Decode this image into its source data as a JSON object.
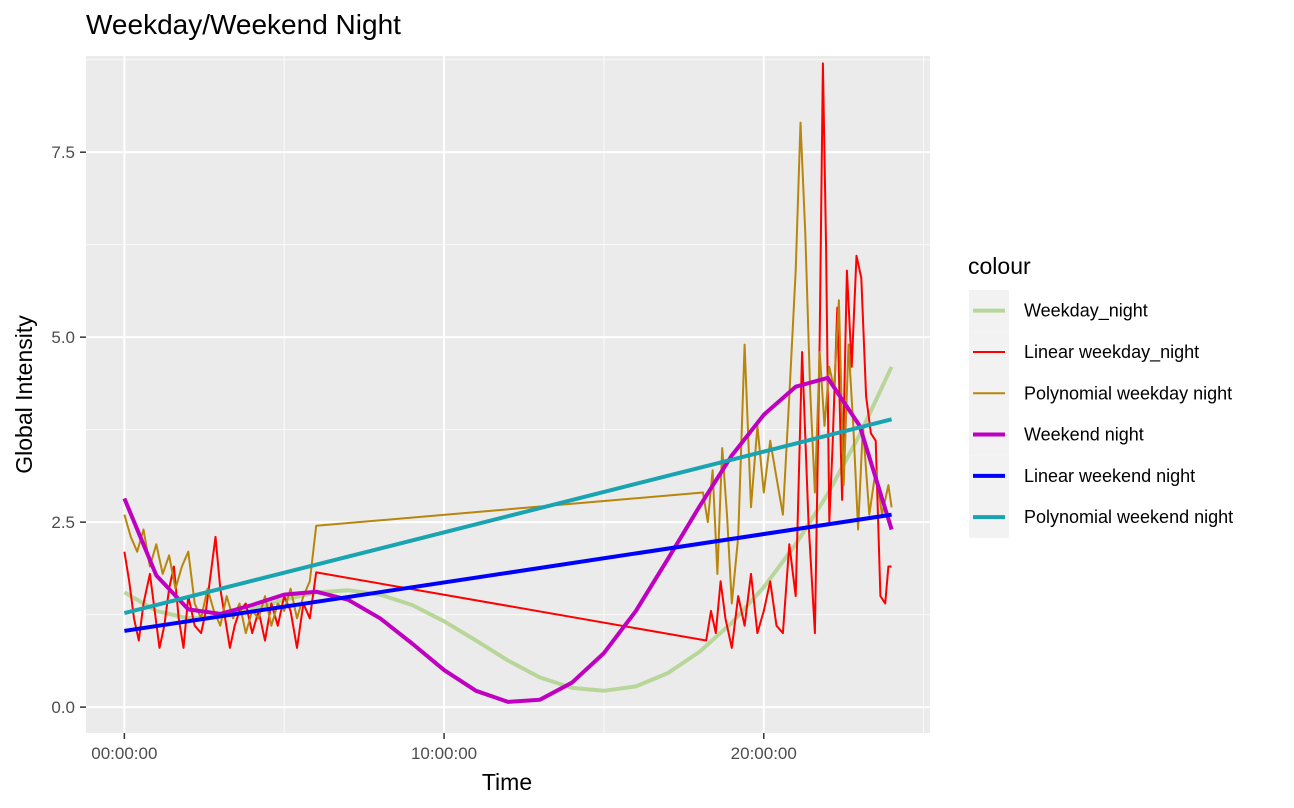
{
  "chart_data": {
    "type": "line",
    "title": "Weekday/Weekend Night",
    "xlabel": "Time",
    "ylabel": "Global Intensity",
    "x_unit": "hours",
    "xlim": [
      -1.2,
      25.2
    ],
    "ylim": [
      -0.35,
      8.8
    ],
    "x_ticks": [
      {
        "value": 0,
        "label": "00:00:00"
      },
      {
        "value": 10,
        "label": "10:00:00"
      },
      {
        "value": 20,
        "label": "20:00:00"
      }
    ],
    "y_ticks": [
      {
        "value": 0,
        "label": "0.0"
      },
      {
        "value": 2.5,
        "label": "2.5"
      },
      {
        "value": 5,
        "label": "5.0"
      },
      {
        "value": 7.5,
        "label": "7.5"
      }
    ],
    "grid": true,
    "legend": {
      "title": "colour",
      "position": "right"
    },
    "series": [
      {
        "name": "Weekday_night",
        "color": "#b8d69a",
        "width": 4,
        "x": [
          0,
          1,
          2,
          3,
          4,
          5,
          6,
          7,
          8,
          9,
          10,
          11,
          12,
          13,
          14,
          15,
          16,
          17,
          18,
          19,
          20,
          21,
          22,
          23,
          24
        ],
        "y": [
          1.55,
          1.3,
          1.2,
          1.22,
          1.32,
          1.45,
          1.55,
          1.58,
          1.52,
          1.38,
          1.16,
          0.9,
          0.63,
          0.4,
          0.26,
          0.22,
          0.28,
          0.46,
          0.75,
          1.14,
          1.62,
          2.2,
          2.88,
          3.68,
          4.6
        ]
      },
      {
        "name": "Linear weekday_night",
        "color": "#ff0000",
        "width": 2,
        "x": [
          0,
          0.15,
          0.3,
          0.45,
          0.6,
          0.8,
          0.95,
          1.1,
          1.25,
          1.4,
          1.55,
          1.7,
          1.85,
          2.0,
          2.2,
          2.4,
          2.55,
          2.7,
          2.85,
          3.0,
          3.15,
          3.3,
          3.45,
          3.6,
          3.8,
          4.0,
          4.2,
          4.4,
          4.6,
          4.8,
          5.0,
          5.2,
          5.4,
          5.6,
          5.8,
          6.0,
          18.2,
          18.35,
          18.5,
          18.65,
          18.8,
          19.0,
          19.2,
          19.4,
          19.6,
          19.8,
          20.0,
          20.2,
          20.4,
          20.6,
          20.8,
          21.0,
          21.2,
          21.4,
          21.6,
          21.75,
          21.85,
          21.95,
          22.05,
          22.15,
          22.3,
          22.45,
          22.6,
          22.75,
          22.9,
          23.05,
          23.2,
          23.35,
          23.5,
          23.65,
          23.8,
          23.9,
          24.0
        ],
        "y": [
          2.1,
          1.7,
          1.2,
          0.9,
          1.4,
          1.8,
          1.3,
          0.8,
          1.1,
          1.6,
          1.9,
          1.2,
          0.8,
          1.5,
          1.1,
          1.0,
          1.3,
          1.8,
          2.3,
          1.6,
          1.2,
          0.8,
          1.1,
          1.3,
          1.4,
          1.0,
          1.3,
          0.9,
          1.4,
          1.1,
          1.5,
          1.3,
          0.8,
          1.4,
          1.2,
          1.82,
          0.9,
          1.3,
          1.0,
          1.7,
          1.2,
          0.8,
          1.5,
          1.1,
          1.8,
          1.0,
          1.3,
          1.7,
          1.1,
          1.0,
          2.2,
          1.5,
          4.8,
          2.5,
          1.0,
          5.0,
          8.7,
          6.2,
          2.5,
          3.5,
          5.4,
          2.8,
          5.9,
          4.6,
          6.1,
          5.8,
          4.2,
          3.7,
          3.6,
          1.5,
          1.4,
          1.9,
          1.9
        ]
      },
      {
        "name": "Polynomial weekday night",
        "color": "#b8860b",
        "width": 2,
        "x": [
          0,
          0.2,
          0.4,
          0.6,
          0.8,
          1.0,
          1.2,
          1.4,
          1.6,
          1.8,
          2.0,
          2.2,
          2.4,
          2.6,
          2.8,
          3.0,
          3.2,
          3.4,
          3.6,
          3.8,
          4.0,
          4.2,
          4.4,
          4.6,
          4.8,
          5.0,
          5.2,
          5.4,
          5.6,
          5.8,
          6.0,
          18.1,
          18.25,
          18.4,
          18.55,
          18.7,
          18.85,
          19.0,
          19.2,
          19.4,
          19.6,
          19.8,
          20.0,
          20.2,
          20.4,
          20.6,
          20.8,
          21.0,
          21.15,
          21.3,
          21.45,
          21.6,
          21.75,
          21.9,
          22.05,
          22.2,
          22.35,
          22.5,
          22.65,
          22.8,
          22.95,
          23.1,
          23.3,
          23.5,
          23.7,
          23.9,
          24.0
        ],
        "y": [
          2.6,
          2.3,
          2.1,
          2.4,
          1.9,
          2.2,
          1.8,
          2.05,
          1.6,
          1.9,
          2.1,
          1.4,
          1.2,
          1.6,
          1.3,
          1.1,
          1.5,
          1.2,
          1.4,
          1.0,
          1.3,
          1.2,
          1.5,
          1.1,
          1.4,
          1.3,
          1.6,
          1.2,
          1.5,
          1.7,
          2.45,
          2.9,
          2.5,
          3.2,
          1.8,
          3.5,
          2.6,
          1.4,
          2.3,
          4.9,
          2.7,
          3.8,
          2.9,
          3.6,
          3.1,
          2.6,
          4.2,
          5.9,
          7.9,
          6.4,
          4.3,
          2.9,
          4.8,
          3.8,
          4.6,
          4.3,
          5.5,
          3.0,
          4.9,
          3.8,
          2.4,
          3.8,
          2.6,
          3.2,
          2.6,
          3.0,
          2.7
        ]
      },
      {
        "name": "Weekend night",
        "color": "#c000c0",
        "width": 4,
        "x": [
          0,
          1,
          2,
          3,
          4,
          5,
          6,
          7,
          8,
          9,
          10,
          11,
          12,
          13,
          14,
          15,
          16,
          17,
          18,
          19,
          20,
          21,
          22,
          23,
          24
        ],
        "y": [
          2.82,
          1.78,
          1.32,
          1.26,
          1.38,
          1.52,
          1.56,
          1.45,
          1.2,
          0.86,
          0.5,
          0.22,
          0.07,
          0.1,
          0.33,
          0.73,
          1.3,
          2.0,
          2.72,
          3.4,
          3.95,
          4.33,
          4.45,
          3.8,
          2.4
        ]
      },
      {
        "name": "Linear weekend night",
        "color": "#0000ff",
        "width": 4,
        "x": [
          0,
          24
        ],
        "y": [
          1.03,
          2.6
        ]
      },
      {
        "name": "Polynomial weekend night",
        "color": "#1aa3b0",
        "width": 4,
        "x": [
          0,
          24
        ],
        "y": [
          1.27,
          3.89
        ]
      }
    ]
  }
}
